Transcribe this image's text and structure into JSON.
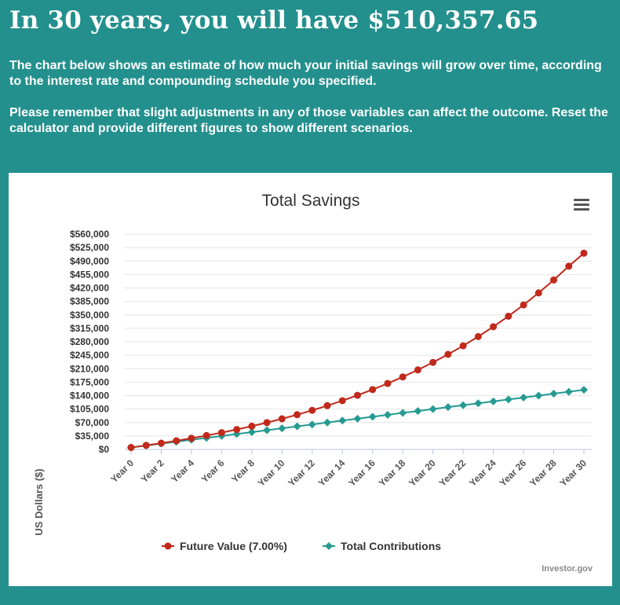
{
  "headline": "In 30 years, you will have $510,357.65",
  "paragraphs": [
    "The chart below shows an estimate of how much your initial savings will grow over time, according to the interest rate and compounding schedule you specified.",
    "Please remember that slight adjustments in any of those variables can affect the outcome. Reset the calculator and provide different figures to show different scenarios."
  ],
  "credit": "Investor.gov",
  "colors": {
    "background": "#23908d",
    "future_value": "#c0291b",
    "contributions": "#259a92"
  },
  "icons": {
    "menu": "hamburger-menu-icon"
  },
  "chart_data": {
    "type": "line",
    "title": "Total Savings",
    "xlabel": "",
    "ylabel": "US Dollars ($)",
    "ylim": [
      0,
      560000
    ],
    "ytick_step": 35000,
    "yticks": [
      "$0",
      "$35,000",
      "$70,000",
      "$105,000",
      "$140,000",
      "$175,000",
      "$210,000",
      "$245,000",
      "$280,000",
      "$315,000",
      "$350,000",
      "$385,000",
      "$420,000",
      "$455,000",
      "$490,000",
      "$525,000",
      "$560,000"
    ],
    "grid": true,
    "legend_position": "bottom",
    "x": [
      "Year 0",
      "Year 1",
      "Year 2",
      "Year 3",
      "Year 4",
      "Year 5",
      "Year 6",
      "Year 7",
      "Year 8",
      "Year 9",
      "Year 10",
      "Year 11",
      "Year 12",
      "Year 13",
      "Year 14",
      "Year 15",
      "Year 16",
      "Year 17",
      "Year 18",
      "Year 19",
      "Year 20",
      "Year 21",
      "Year 22",
      "Year 23",
      "Year 24",
      "Year 25",
      "Year 26",
      "Year 27",
      "Year 28",
      "Year 29",
      "Year 30"
    ],
    "x_tick_labels": [
      "Year 0",
      "Year 2",
      "Year 4",
      "Year 6",
      "Year 8",
      "Year 10",
      "Year 12",
      "Year 14",
      "Year 16",
      "Year 18",
      "Year 20",
      "Year 22",
      "Year 24",
      "Year 26",
      "Year 28",
      "Year 30"
    ],
    "series": [
      {
        "name": "Future Value (7.00%)",
        "marker": "circle",
        "values": [
          5000,
          10550,
          16288,
          22469,
          29082,
          36157,
          43728,
          51829,
          60497,
          69772,
          79696,
          90315,
          101677,
          113834,
          126843,
          140762,
          155656,
          171591,
          188643,
          206888,
          226410,
          247299,
          269650,
          293566,
          319156,
          346537,
          375834,
          407181,
          440725,
          476615,
          510358
        ]
      },
      {
        "name": "Total Contributions",
        "marker": "diamond",
        "values": [
          5000,
          10000,
          15000,
          20000,
          25000,
          30000,
          35000,
          40000,
          45000,
          50000,
          55000,
          60000,
          65000,
          70000,
          75000,
          80000,
          85000,
          90000,
          95000,
          100000,
          105000,
          110000,
          115000,
          120000,
          125000,
          130000,
          135000,
          140000,
          145000,
          150000,
          155000
        ]
      }
    ]
  }
}
